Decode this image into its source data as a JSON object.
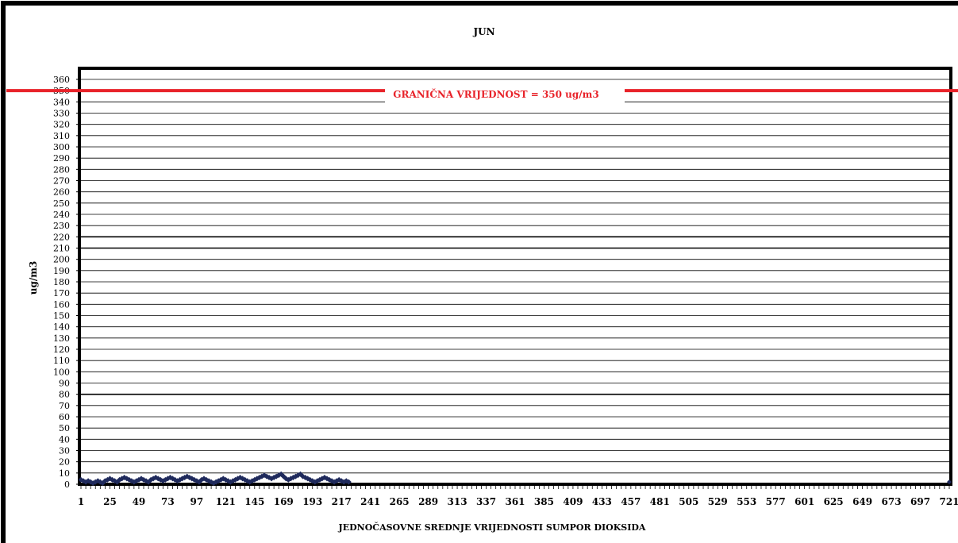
{
  "chart_data": {
    "type": "line",
    "title": "JUN",
    "ylabel": "ug/m3",
    "xlabel": "JEDNOČASOVNE SREDNJE VRIJEDNOSTI SUMPOR DIOKSIDA",
    "ylim": [
      0,
      360
    ],
    "ytick_step": 10,
    "xlim": [
      1,
      721
    ],
    "x_ticks": [
      1,
      25,
      49,
      73,
      97,
      121,
      145,
      169,
      193,
      217,
      241,
      265,
      289,
      313,
      337,
      361,
      385,
      409,
      433,
      457,
      481,
      505,
      529,
      553,
      577,
      601,
      625,
      649,
      673,
      697,
      721
    ],
    "grid": true,
    "legend": "none",
    "limit_line": {
      "value": 350,
      "label": "GRANIČNA VRIJEDNOST = 350 ug/m3",
      "color": "#e8232a"
    },
    "series": [
      {
        "color": "#1f2a5c",
        "marker": "diamond",
        "x": [
          1,
          3,
          5,
          7,
          9,
          11,
          13,
          15,
          17,
          19,
          21,
          23,
          25,
          27,
          29,
          31,
          33,
          35,
          37,
          39,
          41,
          43,
          45,
          47,
          49,
          51,
          53,
          55,
          57,
          59,
          61,
          63,
          65,
          67,
          69,
          71,
          73,
          75,
          77,
          79,
          81,
          83,
          85,
          87,
          89,
          91,
          93,
          95,
          97,
          99,
          101,
          103,
          105,
          107,
          109,
          111,
          113,
          115,
          117,
          119,
          121,
          123,
          125,
          127,
          129,
          131,
          133,
          135,
          137,
          139,
          141,
          143,
          145,
          147,
          149,
          151,
          153,
          155,
          157,
          159,
          161,
          163,
          165,
          167,
          169,
          171,
          173,
          175,
          177,
          179,
          181,
          183,
          185,
          187,
          189,
          191,
          193,
          195,
          197,
          199,
          201,
          203,
          205,
          207,
          209,
          211,
          213,
          215,
          217,
          219,
          221,
          223
        ],
        "y": [
          4,
          3,
          2,
          3,
          2,
          1,
          2,
          3,
          2,
          1,
          3,
          4,
          5,
          4,
          3,
          2,
          4,
          5,
          6,
          5,
          4,
          3,
          2,
          3,
          4,
          5,
          4,
          3,
          2,
          4,
          5,
          6,
          5,
          4,
          3,
          4,
          5,
          6,
          5,
          4,
          3,
          4,
          5,
          6,
          7,
          6,
          5,
          4,
          3,
          2,
          4,
          5,
          4,
          3,
          2,
          1,
          2,
          3,
          4,
          5,
          4,
          3,
          2,
          3,
          4,
          5,
          6,
          5,
          4,
          3,
          2,
          3,
          4,
          5,
          6,
          7,
          8,
          7,
          6,
          5,
          6,
          7,
          8,
          9,
          7,
          5,
          4,
          5,
          6,
          7,
          8,
          9,
          7,
          6,
          5,
          4,
          3,
          2,
          3,
          4,
          5,
          6,
          5,
          4,
          3,
          2,
          3,
          4,
          3,
          2,
          3,
          2
        ]
      }
    ]
  }
}
